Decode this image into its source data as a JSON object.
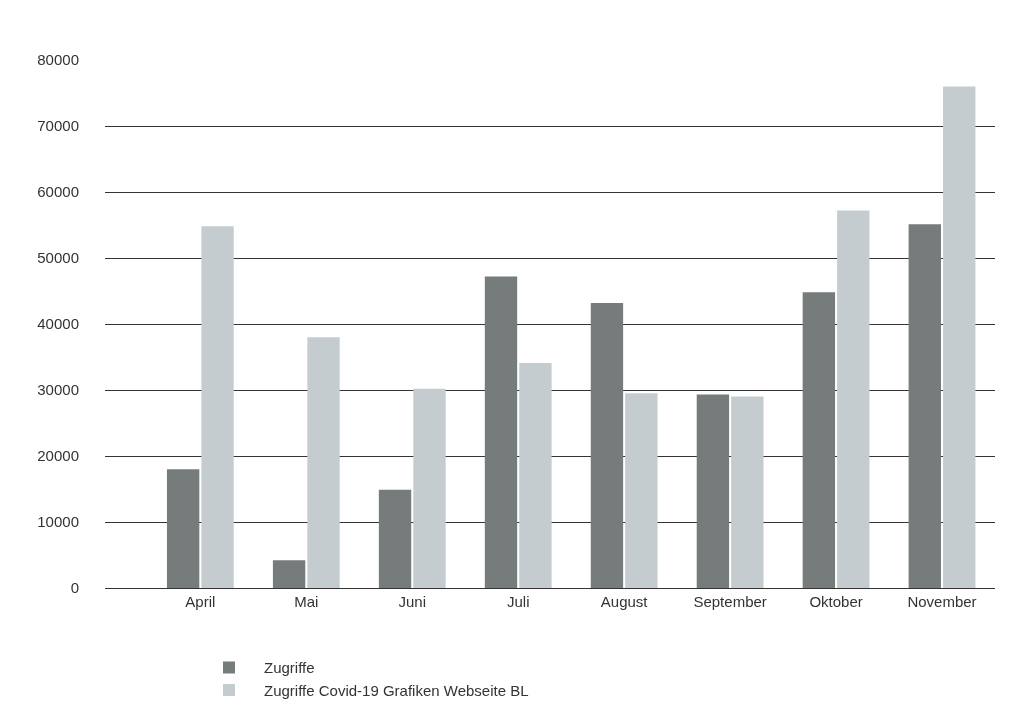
{
  "chart_data": {
    "type": "bar",
    "categories": [
      "April",
      "Mai",
      "Juni",
      "Juli",
      "August",
      "September",
      "Oktober",
      "November"
    ],
    "series": [
      {
        "name": "Zugriffe",
        "color": "#767b7b",
        "values": [
          18000,
          4200,
          14900,
          47200,
          43200,
          29300,
          44800,
          55100
        ]
      },
      {
        "name": "Zugriffe Covid-19 Grafiken Webseite BL",
        "color": "#c5cccf",
        "values": [
          54800,
          38000,
          30200,
          34100,
          29500,
          29000,
          57200,
          76000
        ]
      }
    ],
    "ylim": [
      0,
      80000
    ],
    "yticks": [
      0,
      10000,
      20000,
      30000,
      40000,
      50000,
      60000,
      70000,
      80000
    ],
    "grid": "y",
    "legend": "bottom"
  }
}
